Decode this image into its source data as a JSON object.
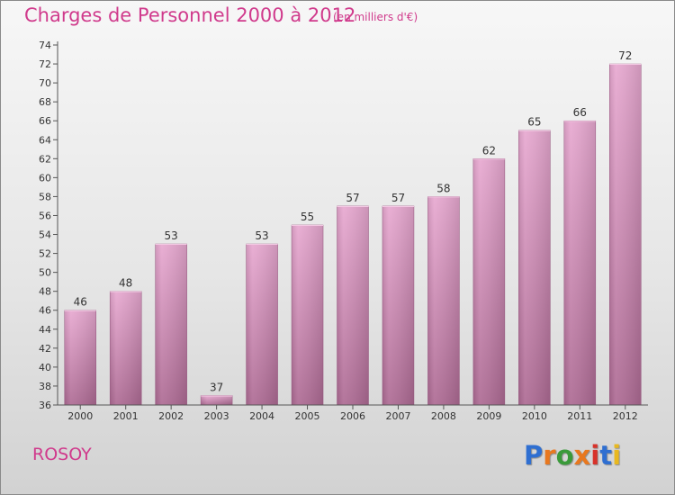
{
  "header": {
    "title": "Charges de Personnel 2000 à 2012",
    "subtitle": "(en milliers d'€)"
  },
  "footer": {
    "commune": "ROSOY",
    "logo_text": "Proxiti",
    "logo_colors": [
      "#2f6fd1",
      "#e8781f",
      "#3a9a3a",
      "#e8781f",
      "#d8322a",
      "#2f6fd1",
      "#e8b81f"
    ]
  },
  "colors": {
    "accent": "#d03a8c",
    "bar_top": "#e7a8d0",
    "bar_bottom": "#ad6a93",
    "bar_edge": "#9d5a85"
  },
  "chart_data": {
    "type": "bar",
    "categories": [
      "2000",
      "2001",
      "2002",
      "2003",
      "2004",
      "2005",
      "2006",
      "2007",
      "2008",
      "2009",
      "2010",
      "2011",
      "2012"
    ],
    "values": [
      46,
      48,
      53,
      37,
      53,
      55,
      57,
      57,
      58,
      62,
      65,
      66,
      72
    ],
    "title": "Charges de Personnel 2000 à 2012",
    "subtitle": "(en milliers d'€)",
    "ylim": [
      36,
      74
    ],
    "yticks": [
      36,
      38,
      40,
      42,
      44,
      46,
      48,
      50,
      52,
      54,
      56,
      58,
      60,
      62,
      64,
      66,
      68,
      70,
      72,
      74
    ],
    "grid": false,
    "legend": "none"
  }
}
